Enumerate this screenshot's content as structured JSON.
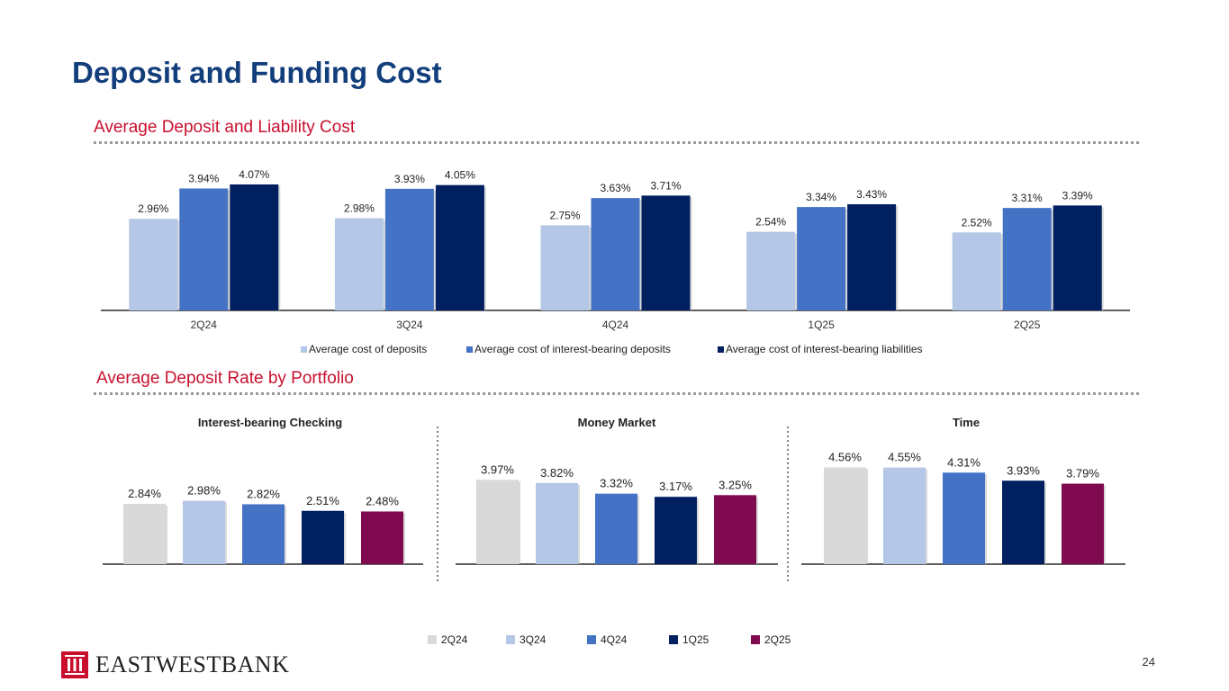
{
  "page": {
    "title": "Deposit and Funding Cost",
    "page_number": "24",
    "logo_text": "EASTWESTBANK"
  },
  "sections": {
    "top_title": "Average Deposit and Liability Cost",
    "bottom_title": "Average Deposit Rate by Portfolio"
  },
  "colors": {
    "title": "#123e7b",
    "section": "#c8102e",
    "2Q24": "#d9d9d9",
    "3Q24": "#b4c7e7",
    "4Q24": "#4472c4",
    "1Q25": "#002060",
    "2Q25": "#7f0a4f",
    "logo_red": "#c8102e"
  },
  "chart_data": [
    {
      "type": "bar",
      "title": "Average Deposit and Liability Cost",
      "categories": [
        "2Q24",
        "3Q24",
        "4Q24",
        "1Q25",
        "2Q25"
      ],
      "series": [
        {
          "name": "Average cost of deposits",
          "color": "#b4c7e7",
          "values": [
            2.96,
            2.98,
            2.75,
            2.54,
            2.52
          ],
          "labels": [
            "2.96%",
            "2.98%",
            "2.75%",
            "2.54%",
            "2.52%"
          ]
        },
        {
          "name": "Average cost of interest-bearing deposits",
          "color": "#4472c4",
          "values": [
            3.94,
            3.93,
            3.63,
            3.34,
            3.31
          ],
          "labels": [
            "3.94%",
            "3.93%",
            "3.63%",
            "3.34%",
            "3.31%"
          ]
        },
        {
          "name": "Average cost of interest-bearing liabilities",
          "color": "#002060",
          "values": [
            4.07,
            4.05,
            3.71,
            3.43,
            3.39
          ],
          "labels": [
            "4.07%",
            "4.05%",
            "3.71%",
            "3.43%",
            "3.39%"
          ]
        }
      ],
      "ylim": [
        0,
        5
      ],
      "legend": "bottom"
    },
    {
      "type": "bar",
      "title": "Interest-bearing Checking",
      "categories": [
        "2Q24",
        "3Q24",
        "4Q24",
        "1Q25",
        "2Q25"
      ],
      "values": [
        2.84,
        2.98,
        2.82,
        2.51,
        2.48
      ],
      "labels": [
        "2.84%",
        "2.98%",
        "2.82%",
        "2.51%",
        "2.48%"
      ],
      "ylim": [
        0,
        5
      ]
    },
    {
      "type": "bar",
      "title": "Money Market",
      "categories": [
        "2Q24",
        "3Q24",
        "4Q24",
        "1Q25",
        "2Q25"
      ],
      "values": [
        3.97,
        3.82,
        3.32,
        3.17,
        3.25
      ],
      "labels": [
        "3.97%",
        "3.82%",
        "3.32%",
        "3.17%",
        "3.25%"
      ],
      "ylim": [
        0,
        5
      ]
    },
    {
      "type": "bar",
      "title": "Time",
      "categories": [
        "2Q24",
        "3Q24",
        "4Q24",
        "1Q25",
        "2Q25"
      ],
      "values": [
        4.56,
        4.55,
        4.31,
        3.93,
        3.79
      ],
      "labels": [
        "4.56%",
        "4.55%",
        "4.31%",
        "3.93%",
        "3.79%"
      ],
      "ylim": [
        0,
        5
      ]
    }
  ],
  "bottom_legend": [
    "2Q24",
    "3Q24",
    "4Q24",
    "1Q25",
    "2Q25"
  ]
}
